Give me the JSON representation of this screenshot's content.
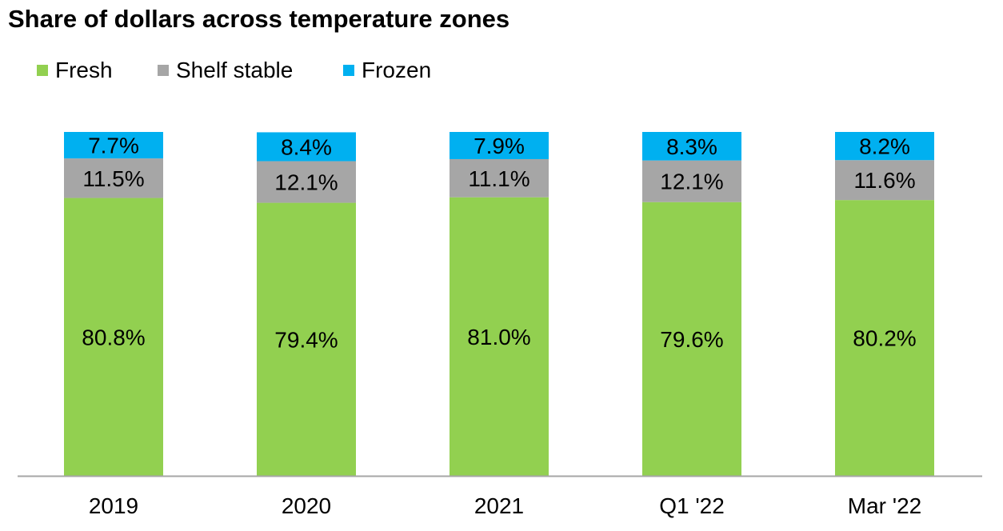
{
  "chart_data": {
    "type": "bar",
    "stacked": true,
    "title": "Share of dollars across temperature zones",
    "categories": [
      "2019",
      "2020",
      "2021",
      "Q1 '22",
      "Mar '22"
    ],
    "series": [
      {
        "name": "Fresh",
        "values": [
          80.8,
          79.4,
          81.0,
          79.6,
          80.2
        ],
        "labels": [
          "80.8%",
          "79.4%",
          "81.0%",
          "79.6%",
          "80.2%"
        ],
        "color": "#92D050"
      },
      {
        "name": "Shelf stable",
        "values": [
          11.5,
          12.1,
          11.1,
          12.1,
          11.6
        ],
        "labels": [
          "11.5%",
          "12.1%",
          "11.1%",
          "12.1%",
          "11.6%"
        ],
        "color": "#A6A6A6"
      },
      {
        "name": "Frozen",
        "values": [
          7.7,
          8.4,
          7.9,
          8.3,
          8.2
        ],
        "labels": [
          "7.7%",
          "8.4%",
          "7.9%",
          "8.3%",
          "8.2%"
        ],
        "color": "#00B0F0"
      }
    ],
    "ylim": [
      0,
      100
    ],
    "axis_color": "#A6A6A6",
    "grid": false,
    "legend_position": "top-left",
    "xlabel": "",
    "ylabel": ""
  }
}
